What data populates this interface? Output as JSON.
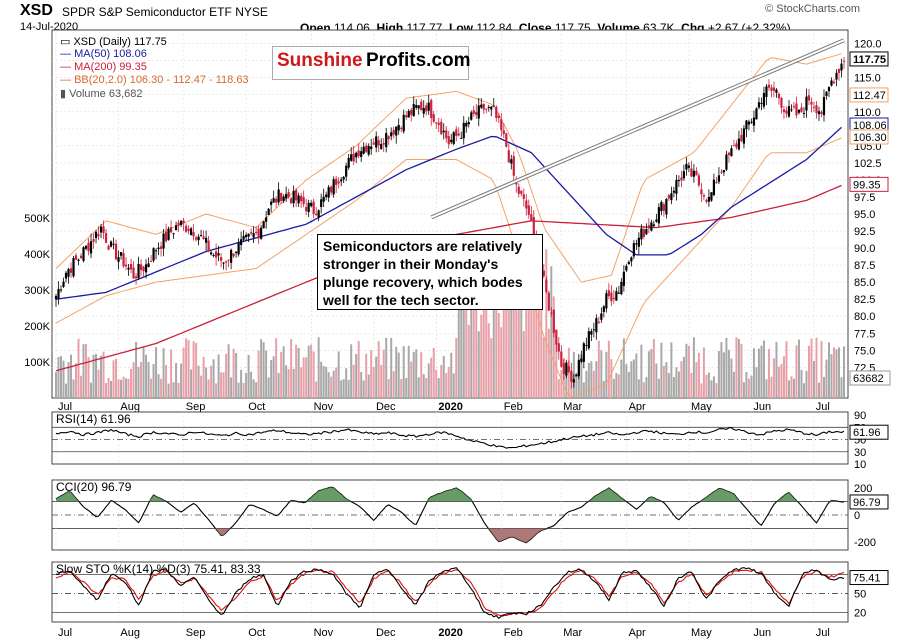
{
  "header": {
    "symbol": "XSD",
    "name": "SPDR S&P Semiconductor ETF",
    "exchange": "NYSE",
    "date": "14-Jul-2020",
    "open_label": "Open",
    "open": "114.06",
    "high_label": "High",
    "high": "117.77",
    "low_label": "Low",
    "low": "112.84",
    "close_label": "Close",
    "close": "117.75",
    "volume_label": "Volume",
    "volume": "63.7K",
    "chg_label": "Chg",
    "chg": "+2.67 (+2.32%)",
    "watermark": "© StockCharts.com"
  },
  "logo": {
    "part1": "Sunshine",
    "part2": "Profits.com"
  },
  "annotation": "Semiconductors are relatively stronger in their Monday's plunge recovery, which bodes well for the tech sector.",
  "legend": {
    "price": "XSD (Daily) 117.75",
    "ma50": "MA(50) 108.06",
    "ma200": "MA(200) 99.35",
    "bb": "BB(20,2.0) 106.30 - 112.47 - 118.63",
    "volume": "Volume 63,682"
  },
  "colors": {
    "up": "#000000",
    "down": "#cc1f3b",
    "ma50": "#1a1aa0",
    "ma200": "#cc1f3b",
    "bb": "#f2a36a",
    "vol_up": "#a8a8a8",
    "vol_down": "#e8a0a8",
    "cci_fill": "#4f8a4f",
    "cci_neg": "#a06060",
    "sto_k": "#000000",
    "sto_d": "#e01010"
  },
  "chart_data": [
    {
      "type": "candlestick",
      "title": "XSD (Daily) 117.75",
      "ylim": [
        68,
        122
      ],
      "y_ticks": [
        72.5,
        75.0,
        77.5,
        80.0,
        82.5,
        85.0,
        87.5,
        90.0,
        92.5,
        95.0,
        97.5,
        100.0,
        102.5,
        105.0,
        107.5,
        110.0,
        112.5,
        115.0,
        117.5,
        120.0
      ],
      "y_tick_labels": [
        "72.5",
        "75.0",
        "77.5",
        "80.0",
        "82.5",
        "85.0",
        "87.5",
        "90.0",
        "92.5",
        "95.0",
        "97.5",
        "100.0",
        "102.5",
        "105.0",
        "107.5",
        "110.0",
        "112.5",
        "115.0",
        "117.5",
        "120.0"
      ],
      "x_labels": [
        "Jul",
        "Aug",
        "Sep",
        "Oct",
        "Nov",
        "Dec",
        "2020",
        "Feb",
        "Mar",
        "Apr",
        "May",
        "Jun",
        "Jul"
      ],
      "volume_ticks": [
        "100K",
        "200K",
        "300K",
        "400K",
        "500K"
      ],
      "price_path": [
        [
          0,
          83.0
        ],
        [
          4,
          86.5
        ],
        [
          9,
          88.5
        ],
        [
          13,
          90.5
        ],
        [
          18,
          93.0
        ],
        [
          22,
          90.0
        ],
        [
          27,
          88.0
        ],
        [
          31,
          86.0
        ],
        [
          36,
          87.5
        ],
        [
          40,
          90.0
        ],
        [
          45,
          92.0
        ],
        [
          49,
          93.5
        ],
        [
          54,
          93.0
        ],
        [
          58,
          91.5
        ],
        [
          63,
          89.0
        ],
        [
          67,
          88.0
        ],
        [
          72,
          90.0
        ],
        [
          76,
          91.0
        ],
        [
          81,
          92.5
        ],
        [
          85,
          96.0
        ],
        [
          90,
          98.0
        ],
        [
          94,
          97.5
        ],
        [
          99,
          96.5
        ],
        [
          103,
          95.5
        ],
        [
          108,
          97.5
        ],
        [
          112,
          100.0
        ],
        [
          117,
          102.5
        ],
        [
          121,
          104.5
        ],
        [
          126,
          105.5
        ],
        [
          130,
          106.0
        ],
        [
          135,
          107.5
        ],
        [
          139,
          109.0
        ],
        [
          144,
          110.5
        ],
        [
          148,
          111.0
        ],
        [
          153,
          108.5
        ],
        [
          157,
          105.5
        ],
        [
          162,
          107.0
        ],
        [
          166,
          109.0
        ],
        [
          171,
          110.5
        ],
        [
          175,
          110.0
        ],
        [
          180,
          105.0
        ],
        [
          184,
          99.0
        ],
        [
          189,
          95.0
        ],
        [
          193,
          88.0
        ],
        [
          198,
          80.0
        ],
        [
          202,
          73.0
        ],
        [
          207,
          71.0
        ],
        [
          211,
          75.5
        ],
        [
          216,
          79.0
        ],
        [
          220,
          82.5
        ],
        [
          225,
          84.0
        ],
        [
          229,
          89.0
        ],
        [
          234,
          92.0
        ],
        [
          238,
          94.0
        ],
        [
          243,
          96.5
        ],
        [
          247,
          99.0
        ],
        [
          252,
          101.5
        ],
        [
          256,
          100.0
        ],
        [
          261,
          97.0
        ],
        [
          265,
          101.0
        ],
        [
          270,
          104.0
        ],
        [
          274,
          106.5
        ],
        [
          279,
          109.5
        ],
        [
          283,
          113.0
        ],
        [
          288,
          113.0
        ],
        [
          292,
          110.0
        ],
        [
          297,
          109.5
        ],
        [
          301,
          112.0
        ],
        [
          306,
          110.0
        ],
        [
          310,
          114.5
        ],
        [
          315,
          117.75
        ]
      ],
      "ma50_path": [
        [
          0,
          82.5
        ],
        [
          20,
          83.5
        ],
        [
          40,
          86.5
        ],
        [
          60,
          89.5
        ],
        [
          80,
          91.5
        ],
        [
          100,
          93.5
        ],
        [
          120,
          97.5
        ],
        [
          140,
          101.5
        ],
        [
          160,
          104.5
        ],
        [
          175,
          106.5
        ],
        [
          190,
          104.0
        ],
        [
          205,
          98.0
        ],
        [
          220,
          92.0
        ],
        [
          232,
          89.0
        ],
        [
          245,
          89.0
        ],
        [
          258,
          92.0
        ],
        [
          270,
          96.0
        ],
        [
          285,
          99.5
        ],
        [
          300,
          103.0
        ],
        [
          315,
          108.06
        ]
      ],
      "ma200_path": [
        [
          0,
          72.0
        ],
        [
          40,
          76.0
        ],
        [
          80,
          82.0
        ],
        [
          120,
          88.0
        ],
        [
          160,
          92.0
        ],
        [
          190,
          94.0
        ],
        [
          215,
          93.5
        ],
        [
          240,
          93.0
        ],
        [
          270,
          94.5
        ],
        [
          300,
          97.0
        ],
        [
          315,
          99.35
        ]
      ],
      "bb_upper_path": [
        [
          0,
          87
        ],
        [
          20,
          94
        ],
        [
          40,
          92
        ],
        [
          60,
          95
        ],
        [
          80,
          93
        ],
        [
          100,
          100
        ],
        [
          120,
          105
        ],
        [
          140,
          112
        ],
        [
          160,
          113
        ],
        [
          175,
          111
        ],
        [
          185,
          104
        ],
        [
          195,
          93
        ],
        [
          210,
          85
        ],
        [
          222,
          86
        ],
        [
          235,
          100
        ],
        [
          255,
          104
        ],
        [
          270,
          111
        ],
        [
          285,
          118
        ],
        [
          300,
          117
        ],
        [
          315,
          118.63
        ]
      ],
      "bb_lower_path": [
        [
          0,
          79
        ],
        [
          20,
          83
        ],
        [
          40,
          85
        ],
        [
          60,
          86
        ],
        [
          80,
          87
        ],
        [
          100,
          92
        ],
        [
          120,
          97
        ],
        [
          140,
          103
        ],
        [
          160,
          103
        ],
        [
          175,
          100
        ],
        [
          185,
          89
        ],
        [
          195,
          77
        ],
        [
          205,
          68
        ],
        [
          220,
          70
        ],
        [
          235,
          82
        ],
        [
          255,
          90
        ],
        [
          270,
          96
        ],
        [
          285,
          104
        ],
        [
          300,
          104
        ],
        [
          315,
          106.3
        ]
      ],
      "right_labels": [
        "117.75",
        "112.47",
        "108.06",
        "106.30",
        "99.35",
        "63682"
      ]
    },
    {
      "type": "line",
      "title": "RSI(14) 61.96",
      "ylim": [
        10,
        95
      ],
      "y_ticks": [
        90,
        70,
        50,
        30,
        10
      ],
      "y_tick_labels": [
        "90",
        "70",
        "50",
        "30",
        "10"
      ],
      "reference_lines": [
        70,
        50,
        30
      ],
      "values": [
        60,
        64,
        58,
        61,
        66,
        59,
        55,
        62,
        60,
        57,
        63,
        59,
        56,
        60,
        58,
        62,
        65,
        61,
        58,
        60,
        63,
        66,
        62,
        59,
        61,
        57,
        55,
        59,
        62,
        56,
        48,
        44,
        38,
        36,
        40,
        43,
        47,
        52,
        55,
        58,
        61,
        57,
        62,
        64,
        60,
        58,
        63,
        61,
        66,
        68,
        62,
        58,
        64,
        66,
        61,
        57,
        63,
        61.96
      ],
      "current": "61.96"
    },
    {
      "type": "area",
      "title": "CCI(20) 96.79",
      "ylim": [
        -260,
        260
      ],
      "y_ticks": [
        200,
        100,
        0,
        -100,
        -200
      ],
      "y_tick_labels": [
        "200",
        "100",
        "0",
        "",
        "-200"
      ],
      "reference_lines": [
        100,
        0,
        -100
      ],
      "values": [
        120,
        180,
        60,
        -20,
        110,
        40,
        -60,
        150,
        100,
        20,
        90,
        -30,
        -160,
        -60,
        80,
        40,
        -10,
        110,
        90,
        180,
        210,
        120,
        60,
        -40,
        80,
        20,
        -80,
        130,
        170,
        200,
        120,
        -60,
        -200,
        -160,
        -210,
        -120,
        -80,
        20,
        60,
        140,
        200,
        120,
        40,
        140,
        90,
        -40,
        60,
        130,
        200,
        160,
        40,
        -80,
        90,
        170,
        60,
        -60,
        110,
        96.79
      ],
      "current": "96.79"
    },
    {
      "type": "line",
      "title": "Slow STO %K(14) %D(3) 75.41, 83.33",
      "ylim": [
        5,
        100
      ],
      "y_ticks": [
        80,
        50,
        20
      ],
      "y_tick_labels": [
        "",
        "50",
        "20"
      ],
      "reference_lines": [
        80,
        50,
        20
      ],
      "series": [
        {
          "name": "%K(14)",
          "values": [
            80,
            88,
            60,
            40,
            82,
            70,
            30,
            85,
            88,
            60,
            78,
            40,
            15,
            50,
            74,
            80,
            30,
            70,
            86,
            88,
            82,
            50,
            28,
            80,
            88,
            60,
            30,
            70,
            86,
            90,
            60,
            20,
            12,
            20,
            18,
            30,
            60,
            84,
            88,
            70,
            40,
            84,
            86,
            60,
            30,
            74,
            86,
            40,
            70,
            88,
            90,
            82,
            50,
            30,
            82,
            88,
            70,
            75.41
          ]
        },
        {
          "name": "%D(3)",
          "values": [
            76,
            84,
            68,
            48,
            74,
            74,
            40,
            78,
            86,
            66,
            74,
            48,
            22,
            44,
            68,
            78,
            38,
            64,
            82,
            86,
            84,
            58,
            34,
            74,
            86,
            66,
            36,
            66,
            82,
            88,
            68,
            28,
            14,
            18,
            18,
            26,
            52,
            78,
            86,
            74,
            46,
            78,
            84,
            66,
            36,
            68,
            82,
            48,
            66,
            84,
            88,
            84,
            58,
            34,
            76,
            86,
            76,
            83.33
          ]
        }
      ],
      "current_k": "75.41",
      "current_d": "83.33"
    }
  ]
}
